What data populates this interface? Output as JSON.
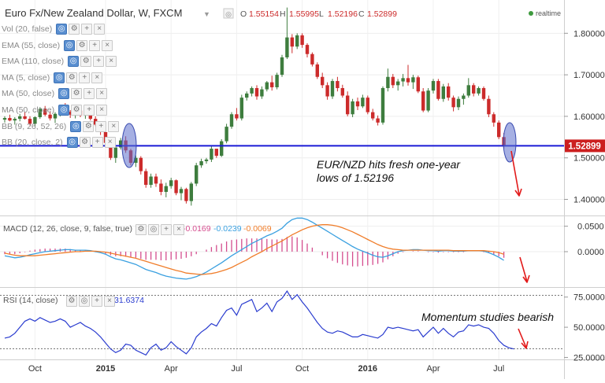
{
  "header": {
    "title": "Euro Fx/New Zealand Dollar, W, FXCM",
    "o_label": "O",
    "o_value": "1.55154",
    "h_label": "H",
    "h_value": "1.55995",
    "l_label": "L",
    "l_value": "1.52196",
    "c_label": "C",
    "c_value": "1.52899",
    "realtime": "realtime"
  },
  "indicators": [
    "Vol (20, false)",
    "EMA (55, close)",
    "EMA (110, close)",
    "MA (5, close)",
    "MA (50, close)",
    "MA (50, close)",
    "BB (9, 26, 52, 26)",
    "BB (20, close, 2)"
  ],
  "macd": {
    "label": "MACD (12, 26, close, 9, false, true)",
    "v1": "-0.0169",
    "v2": "-0.0239",
    "v3": "-0.0069"
  },
  "rsi": {
    "label": "RSI (14, close)",
    "value": "31.6374"
  },
  "annotations": {
    "main_line1": "EUR/NZD hits fresh one-year",
    "main_line2": "lows of 1.52196",
    "rsi_note": "Momentum studies bearish"
  },
  "price_tag": "1.52899",
  "colors": {
    "up": "#3e7d3e",
    "down": "#cc2b2b",
    "hline": "#1b1bd6",
    "macd": "#3aa0e0",
    "signal": "#f07d2a",
    "hist": "#d44d8e",
    "rsi": "#2a3ccf",
    "arrow": "#e21a1a"
  },
  "chart_data": [
    {
      "type": "candlestick",
      "title": "Euro Fx/New Zealand Dollar, W, FXCM",
      "y_ticks": [
        "1.80000",
        "1.70000",
        "1.60000",
        "1.50000",
        "1.40000"
      ],
      "ylim": [
        1.365,
        1.865
      ],
      "x_ticks": [
        "Oct",
        "2015",
        "Apr",
        "Jul",
        "Oct",
        "2016",
        "Apr",
        "Jul"
      ],
      "horizontal_line": 1.52899,
      "ohlc": [
        [
          1.592,
          1.6,
          1.585,
          1.596
        ],
        [
          1.596,
          1.604,
          1.588,
          1.59
        ],
        [
          1.59,
          1.598,
          1.58,
          1.594
        ],
        [
          1.594,
          1.606,
          1.588,
          1.6
        ],
        [
          1.6,
          1.61,
          1.592,
          1.594
        ],
        [
          1.594,
          1.6,
          1.578,
          1.582
        ],
        [
          1.582,
          1.6,
          1.575,
          1.598
        ],
        [
          1.598,
          1.622,
          1.594,
          1.618
        ],
        [
          1.618,
          1.625,
          1.6,
          1.604
        ],
        [
          1.604,
          1.612,
          1.59,
          1.595
        ],
        [
          1.595,
          1.61,
          1.584,
          1.606
        ],
        [
          1.606,
          1.624,
          1.6,
          1.62
        ],
        [
          1.62,
          1.632,
          1.606,
          1.611
        ],
        [
          1.611,
          1.615,
          1.596,
          1.604
        ],
        [
          1.604,
          1.618,
          1.595,
          1.614
        ],
        [
          1.614,
          1.622,
          1.598,
          1.602
        ],
        [
          1.602,
          1.612,
          1.594,
          1.608
        ],
        [
          1.608,
          1.614,
          1.59,
          1.594
        ],
        [
          1.594,
          1.6,
          1.576,
          1.58
        ],
        [
          1.58,
          1.586,
          1.555,
          1.562
        ],
        [
          1.562,
          1.568,
          1.53,
          1.536
        ],
        [
          1.536,
          1.54,
          1.495,
          1.5
        ],
        [
          1.5,
          1.53,
          1.488,
          1.525
        ],
        [
          1.525,
          1.548,
          1.52,
          1.542
        ],
        [
          1.542,
          1.552,
          1.512,
          1.518
        ],
        [
          1.518,
          1.522,
          1.482,
          1.488
        ],
        [
          1.488,
          1.506,
          1.478,
          1.5
        ],
        [
          1.5,
          1.504,
          1.46,
          1.468
        ],
        [
          1.468,
          1.474,
          1.428,
          1.435
        ],
        [
          1.435,
          1.462,
          1.428,
          1.455
        ],
        [
          1.455,
          1.462,
          1.43,
          1.438
        ],
        [
          1.438,
          1.448,
          1.41,
          1.418
        ],
        [
          1.418,
          1.44,
          1.405,
          1.432
        ],
        [
          1.432,
          1.452,
          1.426,
          1.446
        ],
        [
          1.446,
          1.448,
          1.41,
          1.415
        ],
        [
          1.415,
          1.43,
          1.398,
          1.425
        ],
        [
          1.425,
          1.428,
          1.39,
          1.396
        ],
        [
          1.396,
          1.442,
          1.385,
          1.438
        ],
        [
          1.438,
          1.488,
          1.432,
          1.482
        ],
        [
          1.482,
          1.498,
          1.476,
          1.492
        ],
        [
          1.492,
          1.5,
          1.486,
          1.496
        ],
        [
          1.496,
          1.53,
          1.49,
          1.522
        ],
        [
          1.522,
          1.52,
          1.5,
          1.505
        ],
        [
          1.505,
          1.545,
          1.502,
          1.54
        ],
        [
          1.54,
          1.582,
          1.535,
          1.575
        ],
        [
          1.575,
          1.61,
          1.57,
          1.605
        ],
        [
          1.605,
          1.62,
          1.59,
          1.595
        ],
        [
          1.595,
          1.652,
          1.59,
          1.645
        ],
        [
          1.645,
          1.66,
          1.638,
          1.655
        ],
        [
          1.655,
          1.672,
          1.648,
          1.668
        ],
        [
          1.668,
          1.675,
          1.64,
          1.648
        ],
        [
          1.648,
          1.672,
          1.642,
          1.665
        ],
        [
          1.665,
          1.685,
          1.66,
          1.682
        ],
        [
          1.682,
          1.698,
          1.662,
          1.67
        ],
        [
          1.67,
          1.705,
          1.665,
          1.7
        ],
        [
          1.7,
          1.748,
          1.695,
          1.742
        ],
        [
          1.742,
          1.862,
          1.738,
          1.79
        ],
        [
          1.79,
          1.798,
          1.752,
          1.768
        ],
        [
          1.768,
          1.8,
          1.762,
          1.795
        ],
        [
          1.795,
          1.8,
          1.765,
          1.772
        ],
        [
          1.772,
          1.776,
          1.742,
          1.75
        ],
        [
          1.75,
          1.754,
          1.72,
          1.725
        ],
        [
          1.725,
          1.73,
          1.69,
          1.695
        ],
        [
          1.695,
          1.705,
          1.668,
          1.675
        ],
        [
          1.675,
          1.682,
          1.64,
          1.648
        ],
        [
          1.648,
          1.69,
          1.642,
          1.685
        ],
        [
          1.685,
          1.695,
          1.66,
          1.668
        ],
        [
          1.668,
          1.676,
          1.645,
          1.65
        ],
        [
          1.65,
          1.66,
          1.6,
          1.605
        ],
        [
          1.605,
          1.642,
          1.598,
          1.636
        ],
        [
          1.636,
          1.645,
          1.615,
          1.624
        ],
        [
          1.624,
          1.652,
          1.62,
          1.645
        ],
        [
          1.645,
          1.65,
          1.605,
          1.61
        ],
        [
          1.61,
          1.618,
          1.59,
          1.595
        ],
        [
          1.595,
          1.602,
          1.578,
          1.585
        ],
        [
          1.585,
          1.672,
          1.58,
          1.668
        ],
        [
          1.668,
          1.715,
          1.66,
          1.695
        ],
        [
          1.695,
          1.702,
          1.668,
          1.675
        ],
        [
          1.675,
          1.69,
          1.662,
          1.684
        ],
        [
          1.684,
          1.702,
          1.672,
          1.692
        ],
        [
          1.692,
          1.724,
          1.674,
          1.682
        ],
        [
          1.682,
          1.7,
          1.666,
          1.694
        ],
        [
          1.694,
          1.698,
          1.656,
          1.66
        ],
        [
          1.66,
          1.668,
          1.61,
          1.614
        ],
        [
          1.614,
          1.668,
          1.61,
          1.662
        ],
        [
          1.662,
          1.69,
          1.655,
          1.685
        ],
        [
          1.685,
          1.69,
          1.638,
          1.642
        ],
        [
          1.642,
          1.678,
          1.635,
          1.672
        ],
        [
          1.672,
          1.68,
          1.638,
          1.645
        ],
        [
          1.645,
          1.65,
          1.612,
          1.622
        ],
        [
          1.622,
          1.648,
          1.615,
          1.642
        ],
        [
          1.642,
          1.655,
          1.628,
          1.65
        ],
        [
          1.65,
          1.692,
          1.645,
          1.675
        ],
        [
          1.675,
          1.68,
          1.648,
          1.655
        ],
        [
          1.655,
          1.672,
          1.65,
          1.668
        ],
        [
          1.668,
          1.672,
          1.638,
          1.642
        ],
        [
          1.642,
          1.65,
          1.598,
          1.605
        ],
        [
          1.605,
          1.61,
          1.575,
          1.585
        ],
        [
          1.585,
          1.59,
          1.545,
          1.55
        ],
        [
          1.55,
          1.56,
          1.522,
          1.529
        ]
      ]
    },
    {
      "type": "line",
      "title": "MACD (12, 26, close, 9, false, true)",
      "y_ticks": [
        "0.0500",
        "0.0000"
      ],
      "ylim": [
        -0.068,
        0.068
      ],
      "series": [
        {
          "name": "MACD",
          "values": [
            -0.008,
            -0.01,
            -0.012,
            -0.011,
            -0.009,
            -0.006,
            -0.004,
            -0.002,
            0.0,
            0.001,
            0.002,
            0.003,
            0.004,
            0.004,
            0.003,
            0.003,
            0.003,
            0.002,
            0.0,
            -0.002,
            -0.005,
            -0.01,
            -0.014,
            -0.016,
            -0.019,
            -0.022,
            -0.025,
            -0.03,
            -0.035,
            -0.038,
            -0.041,
            -0.045,
            -0.048,
            -0.05,
            -0.052,
            -0.053,
            -0.054,
            -0.052,
            -0.049,
            -0.045,
            -0.04,
            -0.034,
            -0.028,
            -0.022,
            -0.015,
            -0.008,
            -0.002,
            0.004,
            0.01,
            0.016,
            0.021,
            0.026,
            0.031,
            0.035,
            0.04,
            0.046,
            0.056,
            0.063,
            0.066,
            0.066,
            0.063,
            0.058,
            0.052,
            0.046,
            0.04,
            0.034,
            0.028,
            0.022,
            0.016,
            0.01,
            0.005,
            0.001,
            -0.003,
            -0.007,
            -0.01,
            -0.011,
            -0.008,
            -0.004,
            0.0,
            0.002,
            0.003,
            0.004,
            0.004,
            0.003,
            0.002,
            0.002,
            0.001,
            0.002,
            0.002,
            0.001,
            0.001,
            0.001,
            0.002,
            0.002,
            0.002,
            0.001,
            -0.002,
            -0.006,
            -0.011,
            -0.017
          ]
        },
        {
          "name": "Signal",
          "values": [
            -0.003,
            -0.005,
            -0.007,
            -0.008,
            -0.008,
            -0.008,
            -0.008,
            -0.007,
            -0.006,
            -0.005,
            -0.004,
            -0.003,
            -0.002,
            -0.001,
            0.0,
            0.0,
            0.001,
            0.001,
            0.001,
            0.0,
            -0.001,
            -0.003,
            -0.005,
            -0.007,
            -0.009,
            -0.011,
            -0.013,
            -0.016,
            -0.019,
            -0.022,
            -0.025,
            -0.028,
            -0.031,
            -0.034,
            -0.037,
            -0.039,
            -0.042,
            -0.043,
            -0.044,
            -0.045,
            -0.044,
            -0.043,
            -0.041,
            -0.038,
            -0.035,
            -0.031,
            -0.026,
            -0.021,
            -0.016,
            -0.01,
            -0.005,
            0.0,
            0.006,
            0.011,
            0.016,
            0.021,
            0.027,
            0.033,
            0.038,
            0.043,
            0.047,
            0.05,
            0.052,
            0.053,
            0.053,
            0.052,
            0.05,
            0.047,
            0.043,
            0.039,
            0.034,
            0.029,
            0.024,
            0.019,
            0.014,
            0.01,
            0.007,
            0.005,
            0.004,
            0.003,
            0.003,
            0.003,
            0.003,
            0.003,
            0.003,
            0.003,
            0.003,
            0.003,
            0.003,
            0.002,
            0.002,
            0.002,
            0.002,
            0.002,
            0.002,
            0.002,
            0.001,
            0.0,
            -0.002,
            -0.005
          ]
        }
      ]
    },
    {
      "type": "line",
      "title": "RSI (14, close)",
      "y_ticks": [
        "75.0000",
        "50.0000",
        "25.0000"
      ],
      "ylim": [
        24,
        82
      ],
      "series": [
        {
          "name": "RSI",
          "values": [
            41,
            42,
            45,
            50,
            55,
            57,
            55,
            58,
            56,
            54,
            55,
            57,
            55,
            50,
            52,
            54,
            51,
            49,
            46,
            42,
            37,
            32,
            29,
            31,
            36,
            35,
            31,
            29,
            27,
            33,
            36,
            31,
            33,
            38,
            34,
            31,
            28,
            33,
            42,
            46,
            49,
            53,
            51,
            58,
            64,
            66,
            60,
            69,
            71,
            73,
            63,
            66,
            70,
            63,
            71,
            74,
            80,
            73,
            77,
            71,
            66,
            60,
            54,
            49,
            46,
            45,
            47,
            46,
            44,
            42,
            42,
            44,
            43,
            42,
            41,
            44,
            50,
            49,
            50,
            49,
            48,
            47,
            48,
            42,
            46,
            50,
            45,
            49,
            45,
            42,
            46,
            47,
            52,
            51,
            52,
            50,
            49,
            45,
            39,
            35,
            33,
            32
          ]
        }
      ]
    }
  ]
}
